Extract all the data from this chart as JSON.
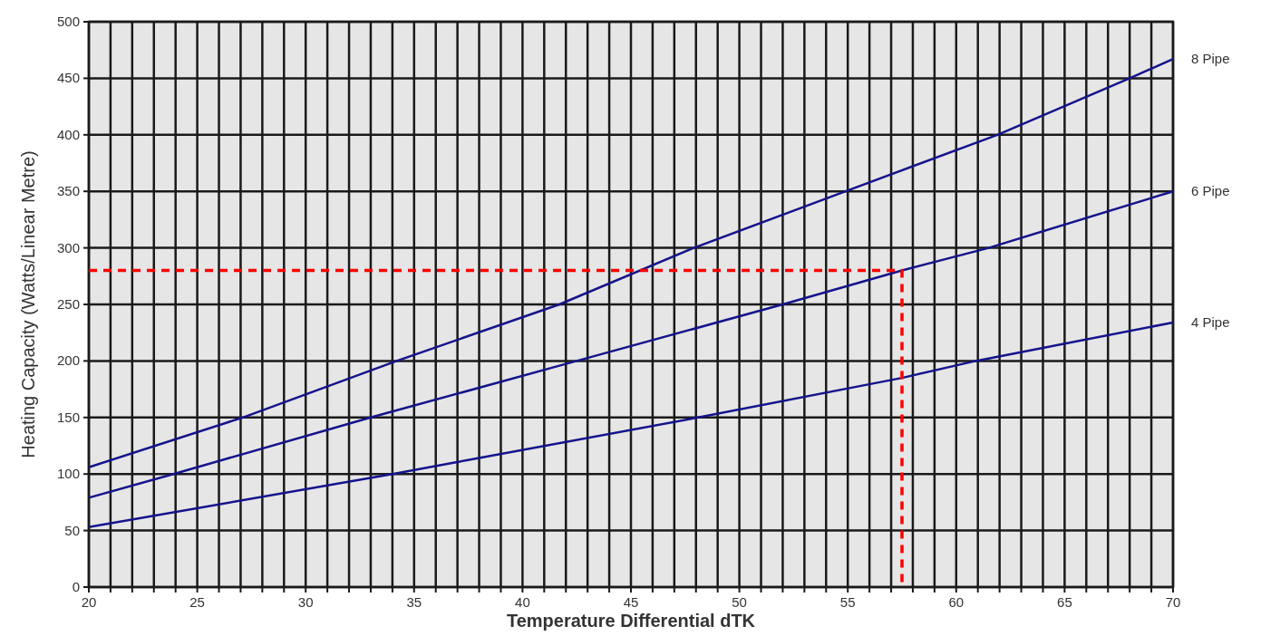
{
  "chart_data": {
    "type": "line",
    "xlabel": "Temperature Differential dTK",
    "ylabel": "Heating Capacity (Watts/Linear Metre)",
    "xlim": [
      20,
      70
    ],
    "ylim": [
      0,
      500
    ],
    "xticks": [
      20,
      {
        "value": 21,
        "label": null
      },
      {
        "value": 22,
        "label": null
      },
      {
        "value": 23,
        "label": null
      },
      {
        "value": 24,
        "label": null
      },
      25,
      {
        "value": 26,
        "label": null
      },
      {
        "value": 27,
        "label": null
      },
      {
        "value": 28,
        "label": null
      },
      {
        "value": 29,
        "label": null
      },
      30,
      {
        "value": 31,
        "label": null
      },
      {
        "value": 32,
        "label": null
      },
      {
        "value": 33,
        "label": null
      },
      {
        "value": 34,
        "label": null
      },
      35,
      {
        "value": 36,
        "label": null
      },
      {
        "value": 37,
        "label": null
      },
      {
        "value": 38,
        "label": null
      },
      {
        "value": 39,
        "label": null
      },
      40,
      {
        "value": 41,
        "label": null
      },
      {
        "value": 42,
        "label": null
      },
      {
        "value": 43,
        "label": null
      },
      {
        "value": 44,
        "label": null
      },
      45,
      {
        "value": 46,
        "label": null
      },
      {
        "value": 47,
        "label": null
      },
      {
        "value": 48,
        "label": null
      },
      {
        "value": 49,
        "label": null
      },
      50,
      {
        "value": 51,
        "label": null
      },
      {
        "value": 52,
        "label": null
      },
      {
        "value": 53,
        "label": null
      },
      {
        "value": 54,
        "label": null
      },
      55,
      {
        "value": 56,
        "label": null
      },
      {
        "value": 57,
        "label": null
      },
      {
        "value": 58,
        "label": null
      },
      {
        "value": 59,
        "label": null
      },
      60,
      {
        "value": 61,
        "label": null
      },
      {
        "value": 62,
        "label": null
      },
      {
        "value": 63,
        "label": null
      },
      {
        "value": 64,
        "label": null
      },
      65,
      {
        "value": 66,
        "label": null
      },
      {
        "value": 67,
        "label": null
      },
      {
        "value": 68,
        "label": null
      },
      {
        "value": 69,
        "label": null
      },
      70
    ],
    "yticks": [
      0,
      50,
      100,
      150,
      200,
      250,
      300,
      350,
      400,
      450,
      500
    ],
    "grid": true,
    "legend": false,
    "marker": "none",
    "line_style": "solid",
    "series": [
      {
        "name": "8 Pipe",
        "color": "#14148c",
        "x": [
          20,
          27.1,
          34.2,
          41.7,
          47.9,
          54.9,
          61.9,
          68,
          70
        ],
        "values": [
          106,
          150,
          200,
          250,
          300,
          350,
          400,
          450,
          467
        ]
      },
      {
        "name": "6 Pipe",
        "color": "#14148c",
        "x": [
          20,
          23.9,
          33,
          42.5,
          52,
          57.5,
          61.5,
          70
        ],
        "values": [
          79,
          100,
          150,
          200,
          250,
          280,
          300,
          350
        ]
      },
      {
        "name": "4 Pipe",
        "color": "#14148c",
        "x": [
          20,
          34,
          48.1,
          57.5,
          60.9,
          70
        ],
        "values": [
          53,
          100,
          150,
          185,
          200,
          234
        ]
      },
      {
        "color": "#ff0000",
        "line_style": "dashed",
        "x": [
          20,
          57.5,
          57.5
        ],
        "values": [
          280,
          280,
          0
        ]
      }
    ]
  }
}
